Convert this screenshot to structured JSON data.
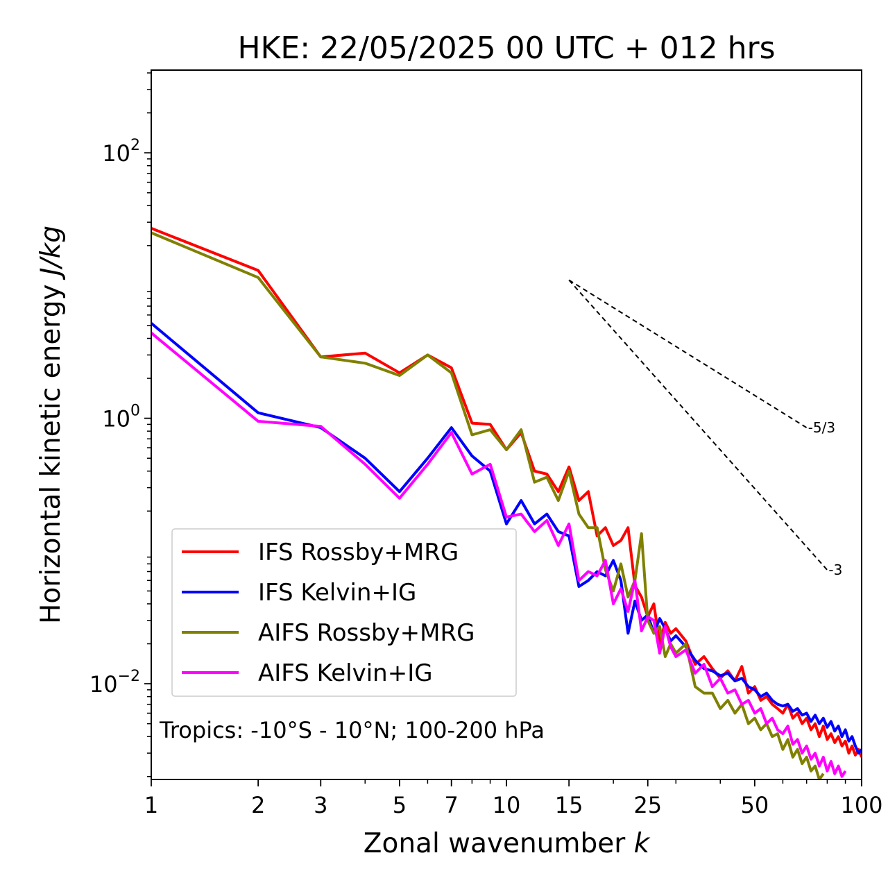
{
  "chart_data": {
    "type": "line",
    "title": "HKE: 22/05/2025 00 UTC + 012 hrs",
    "xlabel": "Zonal wavenumber ",
    "xlabel_var": "k",
    "ylabel": "Horizontal kinetic energy ",
    "ylabel_unit": "J/kg",
    "x_scale": "log",
    "y_scale": "log",
    "xlim": [
      1,
      100
    ],
    "ylim": [
      0.0019,
      420
    ],
    "x_ticks": [
      {
        "value": 1,
        "label": "1"
      },
      {
        "value": 2,
        "label": "2"
      },
      {
        "value": 3,
        "label": "3"
      },
      {
        "value": 5,
        "label": "5"
      },
      {
        "value": 7,
        "label": "7"
      },
      {
        "value": 10,
        "label": "10"
      },
      {
        "value": 15,
        "label": "15"
      },
      {
        "value": 25,
        "label": "25"
      },
      {
        "value": 50,
        "label": "50"
      },
      {
        "value": 100,
        "label": "100"
      }
    ],
    "y_ticks": [
      {
        "value": 100,
        "base": "10",
        "exp": "2"
      },
      {
        "value": 1,
        "base": "10",
        "exp": "0"
      },
      {
        "value": 0.01,
        "base": "10",
        "exp": "−2"
      }
    ],
    "grid": false,
    "legend_position": "lower-left",
    "annotation": "Tropics: -10°S - 10°N; 100-200 hPa",
    "reference_lines": [
      {
        "label": "-5/3",
        "x": [
          15,
          70
        ],
        "y": [
          11.0,
          0.85
        ]
      },
      {
        "label": "-3",
        "x": [
          15,
          80
        ],
        "y": [
          11.0,
          0.072
        ]
      }
    ],
    "series": [
      {
        "name": "IFS Rossby+MRG",
        "color": "#ff0000",
        "x": [
          1,
          2,
          3,
          4,
          5,
          6,
          7,
          8,
          9,
          10,
          11,
          12,
          13,
          14,
          15,
          16,
          17,
          18,
          19,
          20,
          21,
          22,
          23,
          24,
          25,
          26,
          27,
          28,
          29,
          30,
          32,
          34,
          36,
          38,
          40,
          42,
          44,
          46,
          48,
          50,
          52,
          54,
          56,
          58,
          60,
          62,
          64,
          66,
          68,
          70,
          72,
          74,
          76,
          78,
          80,
          82,
          84,
          86,
          88,
          90,
          92,
          94,
          96,
          98,
          100
        ],
        "y": [
          27.0,
          13.0,
          2.9,
          3.1,
          2.2,
          3.0,
          2.4,
          0.92,
          0.9,
          0.58,
          0.78,
          0.4,
          0.38,
          0.28,
          0.43,
          0.24,
          0.28,
          0.13,
          0.15,
          0.11,
          0.12,
          0.15,
          0.055,
          0.045,
          0.032,
          0.04,
          0.02,
          0.029,
          0.024,
          0.026,
          0.021,
          0.014,
          0.016,
          0.013,
          0.011,
          0.0125,
          0.0105,
          0.0135,
          0.0085,
          0.0095,
          0.0075,
          0.008,
          0.007,
          0.0065,
          0.006,
          0.007,
          0.0055,
          0.006,
          0.005,
          0.0055,
          0.0045,
          0.005,
          0.004,
          0.0048,
          0.0038,
          0.0042,
          0.0036,
          0.004,
          0.0034,
          0.0037,
          0.003,
          0.0034,
          0.0029,
          0.0032,
          0.0028
        ]
      },
      {
        "name": "IFS Kelvin+IG",
        "color": "#0000ff",
        "x": [
          1,
          2,
          3,
          4,
          5,
          6,
          7,
          8,
          9,
          10,
          11,
          12,
          13,
          14,
          15,
          16,
          17,
          18,
          19,
          20,
          21,
          22,
          23,
          24,
          25,
          26,
          27,
          28,
          29,
          30,
          32,
          34,
          36,
          38,
          40,
          42,
          44,
          46,
          48,
          50,
          52,
          54,
          56,
          58,
          60,
          62,
          64,
          66,
          68,
          70,
          72,
          74,
          76,
          78,
          80,
          82,
          84,
          86,
          88,
          90,
          92,
          94,
          96,
          98,
          100
        ],
        "y": [
          5.2,
          1.1,
          0.85,
          0.5,
          0.28,
          0.5,
          0.85,
          0.52,
          0.4,
          0.16,
          0.24,
          0.16,
          0.19,
          0.14,
          0.13,
          0.054,
          0.06,
          0.07,
          0.065,
          0.085,
          0.06,
          0.024,
          0.042,
          0.03,
          0.033,
          0.024,
          0.031,
          0.026,
          0.021,
          0.023,
          0.019,
          0.015,
          0.013,
          0.0125,
          0.0115,
          0.012,
          0.0105,
          0.011,
          0.0095,
          0.009,
          0.008,
          0.0085,
          0.0075,
          0.007,
          0.0068,
          0.007,
          0.0062,
          0.0065,
          0.0058,
          0.006,
          0.0052,
          0.0058,
          0.005,
          0.0055,
          0.0047,
          0.0052,
          0.0044,
          0.0048,
          0.004,
          0.0045,
          0.0037,
          0.004,
          0.0034,
          0.003,
          0.0032
        ]
      },
      {
        "name": "AIFS Rossby+MRG",
        "color": "#808000",
        "x": [
          1,
          2,
          3,
          4,
          5,
          6,
          7,
          8,
          9,
          10,
          11,
          12,
          13,
          14,
          15,
          16,
          17,
          18,
          19,
          20,
          21,
          22,
          23,
          24,
          25,
          26,
          27,
          28,
          29,
          30,
          32,
          34,
          36,
          38,
          40,
          42,
          44,
          46,
          48,
          50,
          52,
          54,
          56,
          58,
          60,
          62,
          64,
          66,
          68,
          70,
          72,
          74,
          76,
          78
        ],
        "y": [
          25.0,
          11.5,
          2.9,
          2.6,
          2.1,
          3.0,
          2.2,
          0.75,
          0.82,
          0.58,
          0.82,
          0.33,
          0.36,
          0.24,
          0.4,
          0.19,
          0.15,
          0.15,
          0.072,
          0.05,
          0.08,
          0.045,
          0.06,
          0.135,
          0.03,
          0.024,
          0.027,
          0.016,
          0.02,
          0.017,
          0.02,
          0.0095,
          0.0085,
          0.0085,
          0.0065,
          0.0075,
          0.006,
          0.007,
          0.005,
          0.0055,
          0.0045,
          0.005,
          0.004,
          0.0042,
          0.0032,
          0.0038,
          0.0028,
          0.0032,
          0.0025,
          0.0028,
          0.0022,
          0.0024,
          0.0019,
          0.0021
        ]
      },
      {
        "name": "AIFS Kelvin+IG",
        "color": "#ff00ff",
        "x": [
          1,
          2,
          3,
          4,
          5,
          6,
          7,
          8,
          9,
          10,
          11,
          12,
          13,
          14,
          15,
          16,
          17,
          18,
          19,
          20,
          21,
          22,
          23,
          24,
          25,
          26,
          27,
          28,
          29,
          30,
          32,
          34,
          36,
          38,
          40,
          42,
          44,
          46,
          48,
          50,
          52,
          54,
          56,
          58,
          60,
          62,
          64,
          66,
          68,
          70,
          72,
          74,
          76,
          78,
          80,
          82,
          84,
          86,
          88,
          90
        ],
        "y": [
          4.4,
          0.95,
          0.87,
          0.45,
          0.25,
          0.45,
          0.78,
          0.38,
          0.45,
          0.18,
          0.19,
          0.14,
          0.17,
          0.11,
          0.16,
          0.06,
          0.07,
          0.065,
          0.085,
          0.04,
          0.052,
          0.035,
          0.06,
          0.025,
          0.032,
          0.03,
          0.017,
          0.027,
          0.019,
          0.016,
          0.018,
          0.012,
          0.014,
          0.0095,
          0.011,
          0.0085,
          0.009,
          0.007,
          0.0075,
          0.006,
          0.0065,
          0.005,
          0.0055,
          0.0045,
          0.0042,
          0.0048,
          0.0035,
          0.0038,
          0.003,
          0.0034,
          0.0027,
          0.003,
          0.0024,
          0.0028,
          0.0022,
          0.0026,
          0.0021,
          0.0024,
          0.002,
          0.0022
        ]
      }
    ]
  }
}
